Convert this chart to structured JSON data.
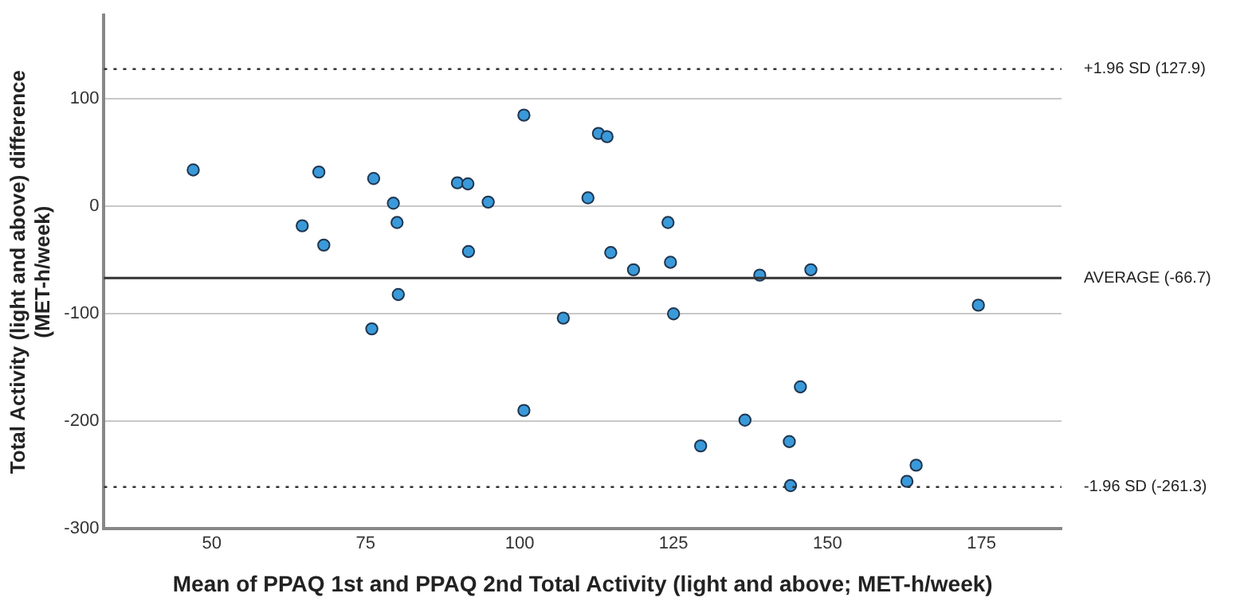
{
  "chart_data": {
    "type": "scatter",
    "xlabel": "Mean of PPAQ 1st and PPAQ 2nd Total Activity (light and above; MET-h/week)",
    "ylabel": "Total Activity (light and above) difference (MET-h/week)",
    "series": [
      {
        "color": "#3a9ad9",
        "x": [
          47,
          64.7,
          67.4,
          68.2,
          76.3,
          76,
          79.5,
          80.1,
          80.3,
          89.9,
          91.6,
          91.7,
          94.9,
          100.7,
          100.7,
          107.1,
          111.1,
          112.8,
          114.2,
          114.8,
          118.5,
          124.1,
          124.5,
          125,
          129.4,
          136.6,
          139,
          143.8,
          144,
          145.6,
          147.3,
          162.9,
          164.4,
          174.5
        ],
        "values": [
          34,
          -18,
          32,
          -36,
          26,
          -114,
          3,
          -15,
          -82,
          22,
          21,
          -42,
          4,
          85,
          -190,
          -104,
          8,
          68,
          65,
          -43,
          -59,
          -15,
          -52,
          -100,
          -223,
          -199,
          -64,
          -219,
          -260,
          -168,
          -59,
          -256,
          -241,
          -92
        ]
      }
    ],
    "xlim": [
      32.5,
      188
    ],
    "xticks": [
      50,
      75,
      100,
      125,
      150,
      175
    ],
    "ylim": [
      -300,
      178
    ],
    "yticks": [
      -300,
      -200,
      -100,
      0,
      100
    ],
    "ref_lines": [
      {
        "axis": "y",
        "value": 127.9,
        "label": "+1.96 SD (127.9)",
        "color": "#333333",
        "line_style": "dotted"
      },
      {
        "axis": "y",
        "value": -66.7,
        "label": "AVERAGE (-66.7)",
        "color": "#333333",
        "line_style": "solid"
      },
      {
        "axis": "y",
        "value": -261.3,
        "label": "-1.96 SD (-261.3)",
        "color": "#333333",
        "line_style": "dotted"
      }
    ],
    "grid": "y",
    "legend": false,
    "marker": "circle"
  }
}
